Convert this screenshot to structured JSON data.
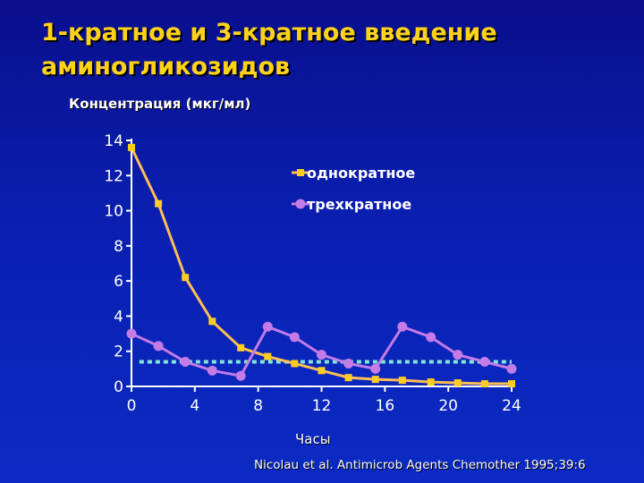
{
  "slide": {
    "title_line1": "1-кратное и 3-кратное введение",
    "title_line2": "аминогликозидов",
    "citation": "Nicolau et al. Antimicrob Agents Chemother 1995;39:6"
  },
  "colors": {
    "background": "#0a1fb0",
    "title": "#ffd21a",
    "series_once": "#ffbe55",
    "series_once_marker": "#ffcc22",
    "series_three": "#c47be6",
    "threshold": "#7fe6d8"
  },
  "chart_data": {
    "type": "line",
    "title": "",
    "ylabel": "Концентрация (мкг/мл)",
    "xlabel": "Часы",
    "xlim": [
      0,
      24
    ],
    "ylim": [
      0,
      14
    ],
    "xticks": [
      0,
      4,
      8,
      12,
      16,
      20,
      24
    ],
    "yticks": [
      0,
      2,
      4,
      6,
      8,
      10,
      12,
      14
    ],
    "grid": false,
    "legend_position": "top-right",
    "series": [
      {
        "name": "однократное",
        "marker": "square",
        "x": [
          0,
          1.7,
          3.4,
          5.1,
          6.9,
          8.6,
          10.3,
          12,
          13.7,
          15.4,
          17.1,
          18.9,
          20.6,
          22.3,
          24
        ],
        "y": [
          13.6,
          10.4,
          6.2,
          3.7,
          2.2,
          1.7,
          1.3,
          0.9,
          0.5,
          0.4,
          0.35,
          0.25,
          0.2,
          0.15,
          0.15
        ]
      },
      {
        "name": "трехкратное",
        "marker": "circle",
        "x": [
          0,
          1.7,
          3.4,
          5.1,
          6.9,
          8.6,
          10.3,
          12,
          13.7,
          15.4,
          17.1,
          18.9,
          20.6,
          22.3,
          24
        ],
        "y": [
          3.0,
          2.3,
          1.4,
          0.9,
          0.6,
          3.4,
          2.8,
          1.8,
          1.3,
          1.0,
          3.4,
          2.8,
          1.8,
          1.4,
          1.0
        ]
      }
    ],
    "reference_line": {
      "y": 1.4,
      "x": [
        0.5,
        24
      ],
      "style": "dotted"
    }
  }
}
